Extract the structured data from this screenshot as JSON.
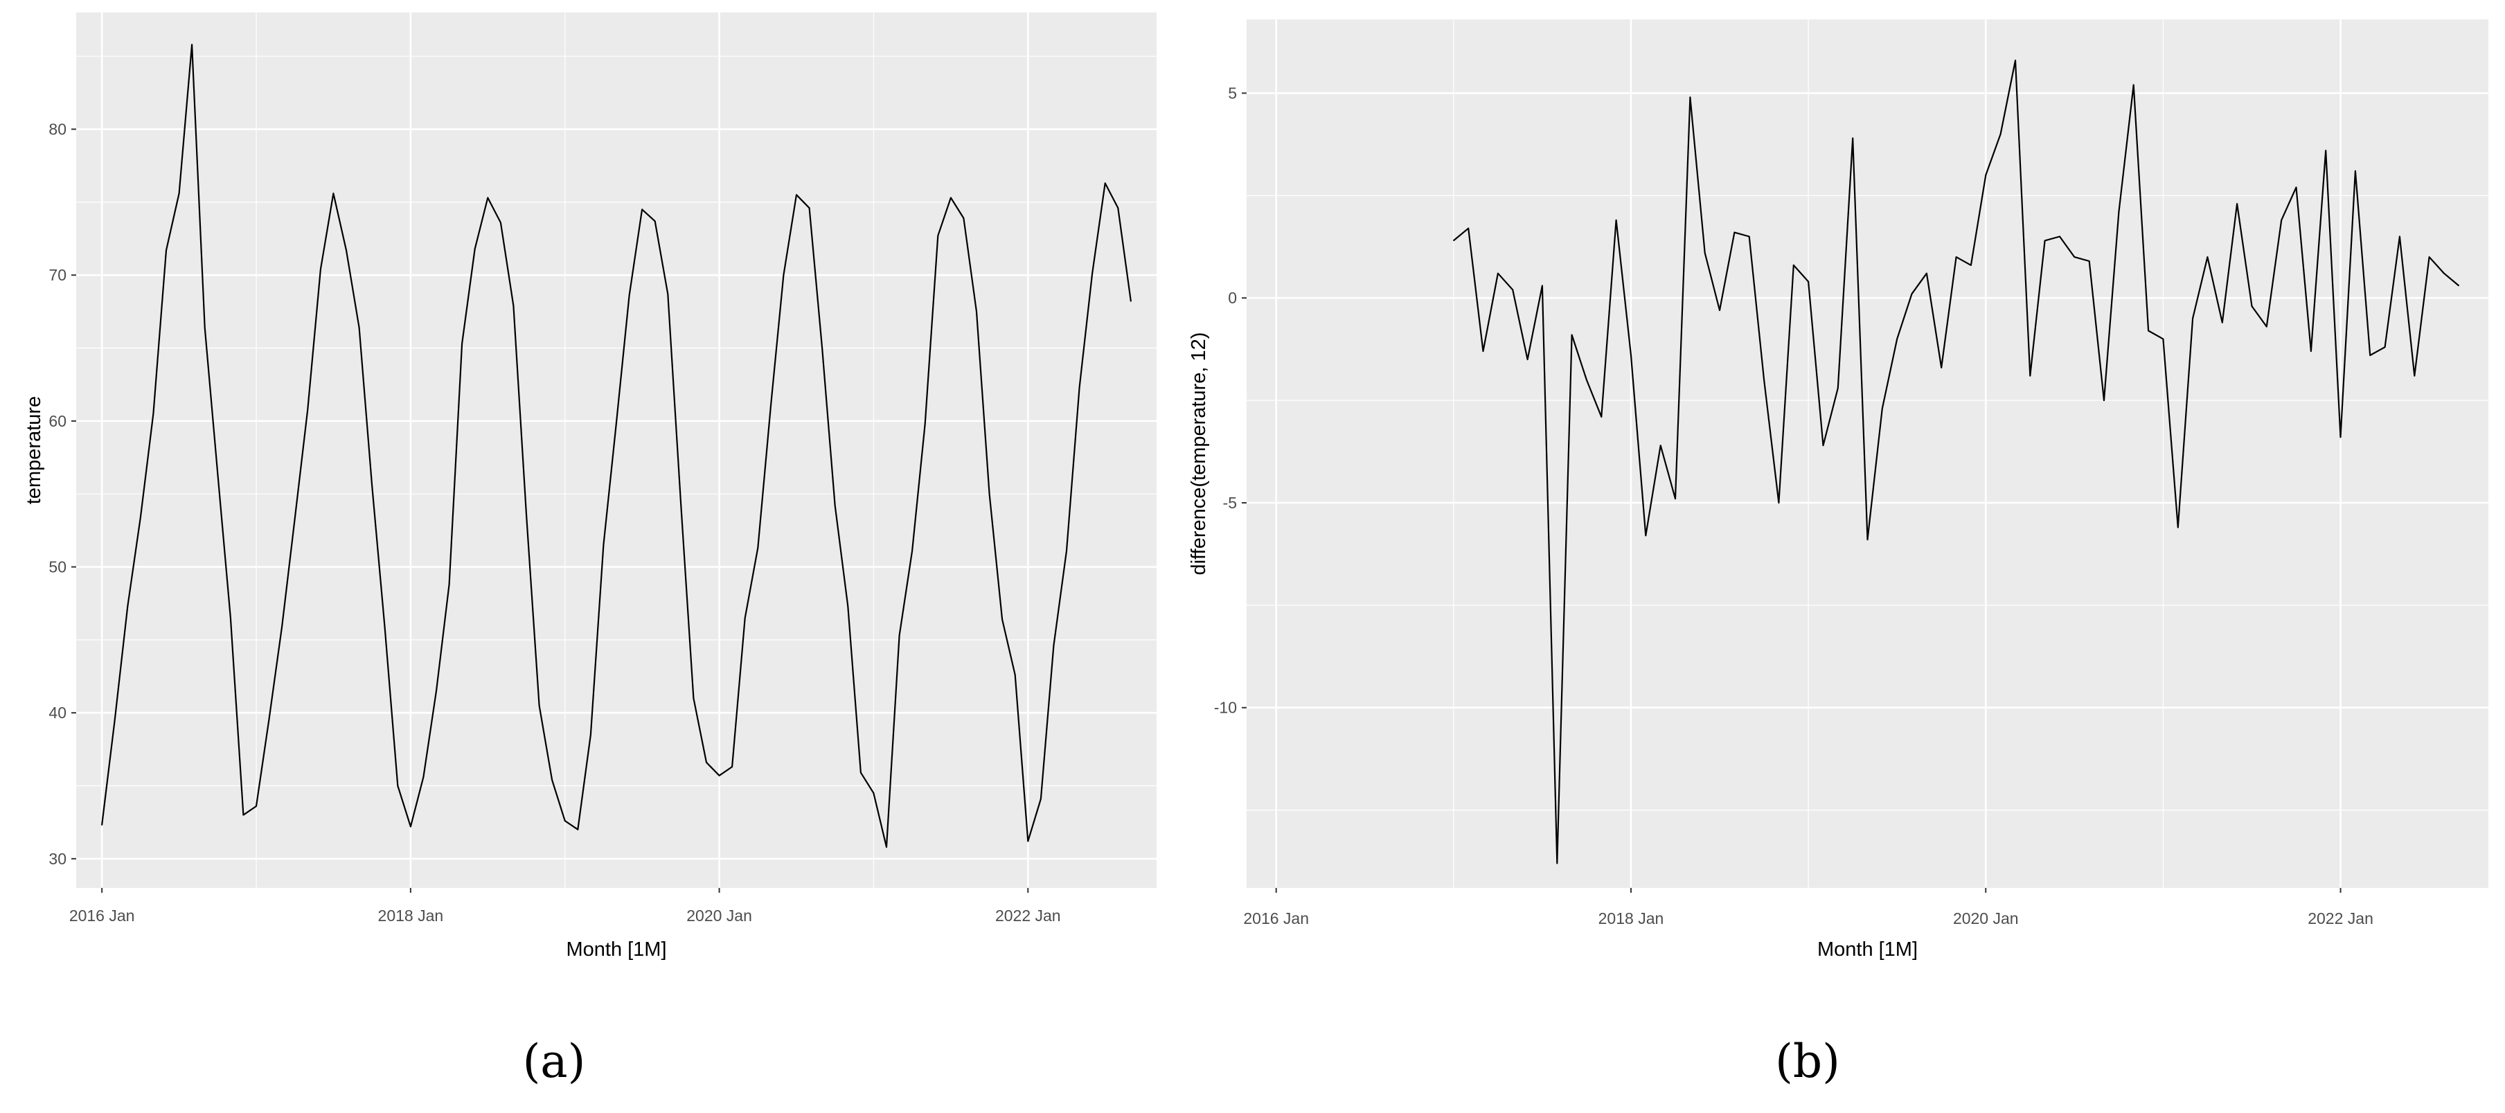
{
  "colors": {
    "panel": "#ebebeb",
    "grid_major": "#ffffff",
    "line": "#000000",
    "tick_text": "#4d4d4d"
  },
  "chart_data": [
    {
      "type": "line",
      "caption": "(a)",
      "xlabel": "Month [1M]",
      "ylabel": "temperature",
      "x_ticks": [
        {
          "value": "2016-01",
          "label": "2016 Jan"
        },
        {
          "value": "2018-01",
          "label": "2018 Jan"
        },
        {
          "value": "2020-01",
          "label": "2020 Jan"
        },
        {
          "value": "2022-01",
          "label": "2022 Jan"
        }
      ],
      "y_ticks": [
        30,
        40,
        50,
        60,
        70,
        80
      ],
      "xlim": [
        "2015-11",
        "2022-11"
      ],
      "ylim": [
        28,
        88
      ],
      "grid": true,
      "series": [
        {
          "x": [
            "2016-01",
            "2016-02",
            "2016-03",
            "2016-04",
            "2016-05",
            "2016-06",
            "2016-07",
            "2016-08",
            "2016-09",
            "2016-10",
            "2016-11",
            "2016-12",
            "2017-01",
            "2017-02",
            "2017-03",
            "2017-04",
            "2017-05",
            "2017-06",
            "2017-07",
            "2017-08",
            "2017-09",
            "2017-10",
            "2017-11",
            "2017-12",
            "2018-01",
            "2018-02",
            "2018-03",
            "2018-04",
            "2018-05",
            "2018-06",
            "2018-07",
            "2018-08",
            "2018-09",
            "2018-10",
            "2018-11",
            "2018-12",
            "2019-01",
            "2019-02",
            "2019-03",
            "2019-04",
            "2019-05",
            "2019-06",
            "2019-07",
            "2019-08",
            "2019-09",
            "2019-10",
            "2019-11",
            "2019-12",
            "2020-01",
            "2020-02",
            "2020-03",
            "2020-04",
            "2020-05",
            "2020-06",
            "2020-07",
            "2020-08",
            "2020-09",
            "2020-10",
            "2020-11",
            "2020-12",
            "2021-01",
            "2021-02",
            "2021-03",
            "2021-04",
            "2021-05",
            "2021-06",
            "2021-07",
            "2021-08",
            "2021-09",
            "2021-10",
            "2021-11",
            "2021-12",
            "2022-01",
            "2022-02",
            "2022-03",
            "2022-04",
            "2022-05",
            "2022-06",
            "2022-07",
            "2022-08",
            "2022-09"
          ],
          "values": [
            32.3,
            39.5,
            47.3,
            53.4,
            60.5,
            71.7,
            75.6,
            85.8,
            66.4,
            56.4,
            46.5,
            33.0,
            33.6,
            39.6,
            45.9,
            53.3,
            60.8,
            70.4,
            75.6,
            71.7,
            66.4,
            55.6,
            45.8,
            35.0,
            32.2,
            35.6,
            41.5,
            48.8,
            65.3,
            71.8,
            75.3,
            73.6,
            67.9,
            53.6,
            40.5,
            35.4,
            32.6,
            32.0,
            38.5,
            51.5,
            59.9,
            68.6,
            74.5,
            73.7,
            68.7,
            54.5,
            41.0,
            36.6,
            35.7,
            36.3,
            46.5,
            51.3,
            61.0,
            70.0,
            75.5,
            74.6,
            65.0,
            54.2,
            47.3,
            35.9,
            34.5,
            30.8,
            45.3,
            51.1,
            59.8,
            72.7,
            75.3,
            73.9,
            67.5,
            55.0,
            46.4,
            42.6,
            31.2,
            34.1,
            44.6,
            51.1,
            62.3,
            70.1,
            76.3,
            74.6,
            68.2
          ]
        }
      ]
    },
    {
      "type": "line",
      "caption": "(b)",
      "xlabel": "Month [1M]",
      "ylabel": "difference(temperature, 12)",
      "x_ticks": [
        {
          "value": "2016-01",
          "label": "2016 Jan"
        },
        {
          "value": "2018-01",
          "label": "2018 Jan"
        },
        {
          "value": "2020-01",
          "label": "2020 Jan"
        },
        {
          "value": "2022-01",
          "label": "2022 Jan"
        }
      ],
      "y_ticks": [
        -10,
        -5,
        0,
        5
      ],
      "xlim": [
        "2015-11",
        "2022-11"
      ],
      "ylim": [
        -14.4,
        6.8
      ],
      "grid": true,
      "series": [
        {
          "x": [
            "2017-01",
            "2017-02",
            "2017-03",
            "2017-04",
            "2017-05",
            "2017-06",
            "2017-07",
            "2017-08",
            "2017-09",
            "2017-10",
            "2017-11",
            "2017-12",
            "2018-01",
            "2018-02",
            "2018-03",
            "2018-04",
            "2018-05",
            "2018-06",
            "2018-07",
            "2018-08",
            "2018-09",
            "2018-10",
            "2018-11",
            "2018-12",
            "2019-01",
            "2019-02",
            "2019-03",
            "2019-04",
            "2019-05",
            "2019-06",
            "2019-07",
            "2019-08",
            "2019-09",
            "2019-10",
            "2019-11",
            "2019-12",
            "2020-01",
            "2020-02",
            "2020-03",
            "2020-04",
            "2020-05",
            "2020-06",
            "2020-07",
            "2020-08",
            "2020-09",
            "2020-10",
            "2020-11",
            "2020-12",
            "2021-01",
            "2021-02",
            "2021-03",
            "2021-04",
            "2021-05",
            "2021-06",
            "2021-07",
            "2021-08",
            "2021-09",
            "2021-10",
            "2021-11",
            "2021-12",
            "2022-01",
            "2022-02",
            "2022-03",
            "2022-04",
            "2022-05",
            "2022-06",
            "2022-07",
            "2022-08",
            "2022-09"
          ],
          "values": [
            1.4,
            1.7,
            -1.3,
            0.6,
            0.2,
            -1.5,
            0.3,
            -13.8,
            -0.9,
            -2.0,
            -2.9,
            1.9,
            -1.4,
            -5.8,
            -3.6,
            -4.9,
            4.9,
            1.1,
            -0.3,
            1.6,
            1.5,
            -2.0,
            -5.0,
            0.8,
            0.4,
            -3.6,
            -2.2,
            3.9,
            -5.9,
            -2.7,
            -1.0,
            0.1,
            0.6,
            -1.7,
            1.0,
            0.8,
            3.0,
            4.0,
            5.8,
            -1.9,
            1.4,
            1.5,
            1.0,
            0.9,
            -2.5,
            2.1,
            5.2,
            -0.8,
            -1.0,
            -5.6,
            -0.5,
            1.0,
            -0.6,
            2.3,
            -0.2,
            -0.7,
            1.9,
            2.7,
            -1.3,
            3.6,
            -3.4,
            3.1,
            -1.4,
            -1.2,
            1.5,
            -1.9,
            1.0,
            0.6,
            0.3
          ]
        }
      ]
    }
  ]
}
